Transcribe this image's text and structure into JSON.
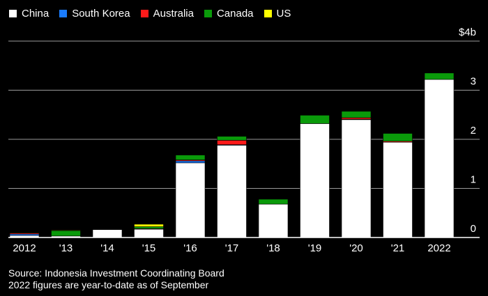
{
  "chart_data": {
    "type": "bar",
    "stacked": true,
    "categories": [
      "2012",
      "'13",
      "'14",
      "'15",
      "'16",
      "'17",
      "'18",
      "'19",
      "'20",
      "'21",
      "2022"
    ],
    "series": [
      {
        "name": "China",
        "color": "#ffffff",
        "values": [
          0.04,
          0.03,
          0.16,
          0.17,
          1.52,
          1.88,
          0.68,
          2.32,
          2.4,
          1.94,
          3.22
        ]
      },
      {
        "name": "South Korea",
        "color": "#1a7cff",
        "values": [
          0.03,
          0.0,
          0.0,
          0.0,
          0.04,
          0.01,
          0.0,
          0.0,
          0.01,
          0.0,
          0.0
        ]
      },
      {
        "name": "Australia",
        "color": "#ff1a1a",
        "values": [
          0.02,
          0.0,
          0.0,
          0.01,
          0.02,
          0.09,
          0.0,
          0.0,
          0.03,
          0.02,
          0.0
        ]
      },
      {
        "name": "Canada",
        "color": "#0a9a0a",
        "values": [
          0.01,
          0.11,
          0.0,
          0.04,
          0.1,
          0.08,
          0.1,
          0.17,
          0.13,
          0.16,
          0.13
        ]
      },
      {
        "name": "US",
        "color": "#ffff00",
        "values": [
          0.0,
          0.01,
          0.0,
          0.05,
          0.0,
          0.0,
          0.0,
          0.0,
          0.0,
          0.0,
          0.0
        ]
      }
    ],
    "yticks": [
      {
        "value": 0,
        "label": "0"
      },
      {
        "value": 1,
        "label": "1"
      },
      {
        "value": 2,
        "label": "2"
      },
      {
        "value": 3,
        "label": "3"
      },
      {
        "value": 4,
        "label": "$4b"
      }
    ],
    "ylim": [
      0,
      4
    ],
    "grid": true,
    "legend_position": "top-left"
  },
  "footnotes": [
    "Source: Indonesia Investment Coordinating Board",
    "2022 figures are year-to-date as of September"
  ]
}
